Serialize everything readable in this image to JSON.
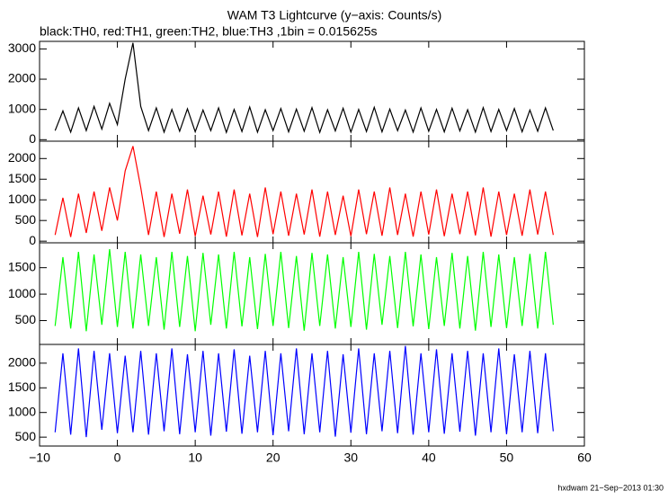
{
  "chart_data": {
    "type": "line",
    "title": "WAM T3 Lightcurve (y−axis: Counts/s)",
    "subtitle": "black:TH0, red:TH1, green:TH2, blue:TH3 ,1bin = 0.015625s",
    "footer": "hxdwam 21−Sep−2013 01:30",
    "xlim": [
      -10,
      60
    ],
    "xticks": [
      {
        "value": -10,
        "label": "−10"
      },
      0,
      10,
      20,
      30,
      40,
      50,
      60
    ],
    "x": [
      -8,
      -7,
      -6,
      -5,
      -4,
      -3,
      -2,
      -1,
      0,
      1,
      2,
      3,
      4,
      5,
      6,
      7,
      8,
      9,
      10,
      11,
      12,
      13,
      14,
      15,
      16,
      17,
      18,
      19,
      20,
      21,
      22,
      23,
      24,
      25,
      26,
      27,
      28,
      29,
      30,
      31,
      32,
      33,
      34,
      35,
      36,
      37,
      38,
      39,
      40,
      41,
      42,
      43,
      44,
      45,
      46,
      47,
      48,
      49,
      50,
      51,
      52,
      53,
      54,
      55,
      56
    ],
    "series": [
      {
        "color": "#000000",
        "ylim": [
          -50,
          3250
        ],
        "yticks": [
          0,
          1000,
          2000,
          3000
        ],
        "values": [
          300,
          950,
          250,
          1050,
          300,
          1100,
          350,
          1200,
          500,
          2000,
          3200,
          1100,
          300,
          1050,
          250,
          1000,
          280,
          1020,
          260,
          980,
          300,
          1050,
          240,
          1000,
          270,
          1080,
          250,
          990,
          300,
          1030,
          260,
          1010,
          280,
          1060,
          240,
          990,
          290,
          1040,
          250,
          1000,
          270,
          1070,
          260,
          1010,
          300,
          980,
          250,
          1050,
          280,
          1000,
          260,
          1040,
          290,
          990,
          250,
          1060,
          270,
          1000,
          300,
          1030,
          260,
          980,
          280,
          1050,
          300
        ]
      },
      {
        "color": "#ff0000",
        "ylim": [
          -40,
          2420
        ],
        "yticks": [
          0,
          500,
          1000,
          1500,
          2000
        ],
        "values": [
          150,
          1050,
          100,
          1150,
          200,
          1200,
          250,
          1300,
          500,
          1700,
          2300,
          1300,
          150,
          1200,
          100,
          1150,
          180,
          1250,
          120,
          1100,
          160,
          1200,
          110,
          1250,
          140,
          1150,
          100,
          1300,
          170,
          1200,
          130,
          1150,
          160,
          1250,
          110,
          1200,
          150,
          1100,
          120,
          1250,
          170,
          1200,
          130,
          1300,
          150,
          1150,
          110,
          1200,
          160,
          1250,
          120,
          1150,
          170,
          1200,
          140,
          1300,
          110,
          1200,
          150,
          1150,
          130,
          1250,
          160,
          1200,
          150
        ]
      },
      {
        "color": "#00ff00",
        "ylim": [
          50,
          1970
        ],
        "yticks": [
          500,
          1000,
          1500
        ],
        "values": [
          400,
          1700,
          350,
          1800,
          300,
          1750,
          420,
          1850,
          380,
          1800,
          350,
          1750,
          400,
          1700,
          330,
          1800,
          380,
          1720,
          300,
          1780,
          420,
          1750,
          350,
          1800,
          390,
          1700,
          340,
          1760,
          400,
          1800,
          360,
          1720,
          310,
          1780,
          400,
          1750,
          350,
          1700,
          380,
          1800,
          330,
          1760,
          420,
          1720,
          360,
          1800,
          390,
          1750,
          340,
          1700,
          400,
          1780,
          350,
          1720,
          310,
          1800,
          380,
          1750,
          360,
          1700,
          400,
          1760,
          350,
          1800,
          420
        ]
      },
      {
        "color": "#0000ff",
        "ylim": [
          320,
          2380
        ],
        "yticks": [
          500,
          1000,
          1500,
          2000
        ],
        "values": [
          600,
          2200,
          550,
          2300,
          500,
          2250,
          650,
          2200,
          580,
          2150,
          600,
          2250,
          550,
          2200,
          620,
          2300,
          560,
          2180,
          600,
          2250,
          530,
          2200,
          610,
          2280,
          570,
          2150,
          600,
          2250,
          540,
          2200,
          620,
          2300,
          560,
          2200,
          600,
          2250,
          510,
          2180,
          590,
          2300,
          560,
          2200,
          620,
          2250,
          580,
          2350,
          550,
          2200,
          600,
          2280,
          570,
          2200,
          610,
          2250,
          530,
          2200,
          600,
          2300,
          560,
          2180,
          600,
          2250,
          580,
          2200,
          620
        ]
      }
    ]
  }
}
